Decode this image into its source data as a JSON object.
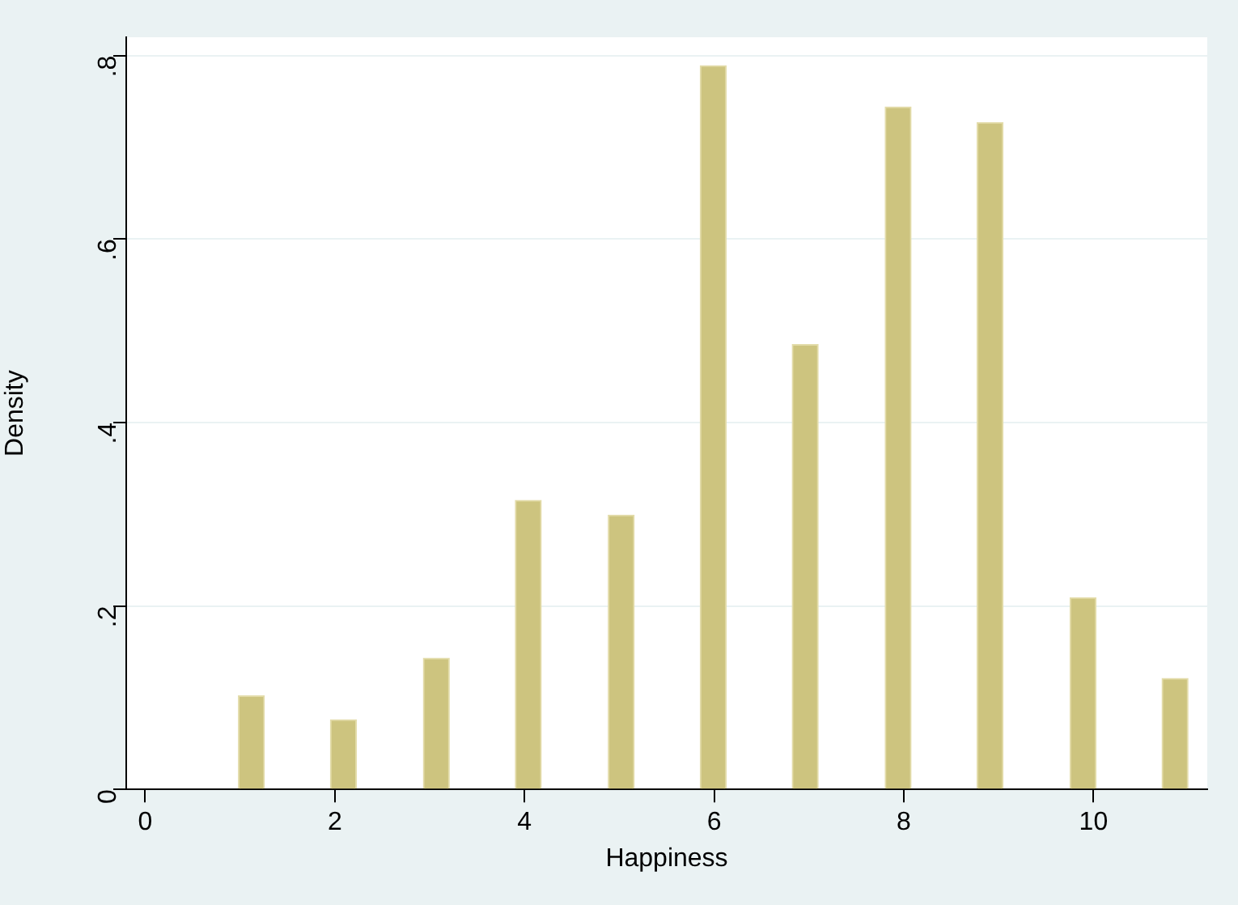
{
  "chart_data": {
    "type": "bar",
    "xlabel": "Happiness",
    "ylabel": "Density",
    "x": [
      1.12,
      2.09,
      3.07,
      4.04,
      5.02,
      5.99,
      6.96,
      7.94,
      8.91,
      9.89,
      10.86
    ],
    "values": [
      0.102,
      0.076,
      0.143,
      0.315,
      0.299,
      0.789,
      0.485,
      0.744,
      0.727,
      0.209,
      0.121
    ],
    "color": "#cdc47f",
    "xlim": [
      -0.2,
      11.2
    ],
    "xticks": [
      0,
      2,
      4,
      6,
      8,
      10
    ],
    "ylim": [
      0,
      0.82
    ],
    "yticks": [
      0,
      {
        "value": 0.2,
        "label": ".2"
      },
      {
        "value": 0.4,
        "label": ".4"
      },
      {
        "value": 0.6,
        "label": ".6"
      },
      {
        "value": 0.8,
        "label": ".8"
      }
    ],
    "grid": "y"
  }
}
